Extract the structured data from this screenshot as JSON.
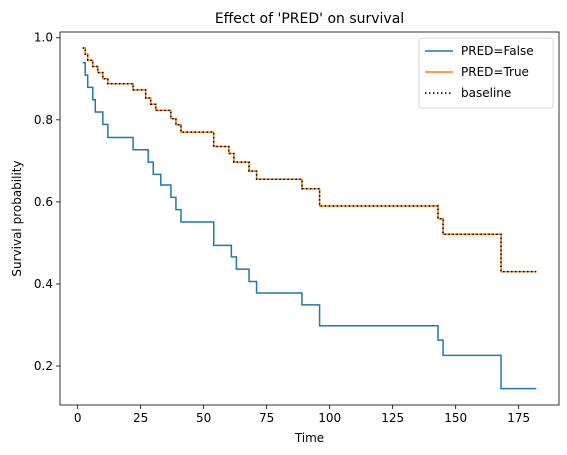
{
  "chart_data": {
    "type": "line",
    "title": "Effect of 'PRED' on survival",
    "xlabel": "Time",
    "ylabel": "Survival probability",
    "xlim": [
      -7,
      191
    ],
    "ylim": [
      0.105,
      1.014
    ],
    "xticks": [
      0,
      25,
      50,
      75,
      100,
      125,
      150,
      175
    ],
    "yticks": [
      0.2,
      0.4,
      0.6,
      0.8,
      1.0
    ],
    "ytick_labels": [
      "0.2",
      "0.4",
      "0.6",
      "0.8",
      "1.0"
    ],
    "legend_position": "top-right",
    "grid": false,
    "series": [
      {
        "name": "PRED=False",
        "color": "#1f77b4",
        "style": "solid",
        "x": [
          2,
          3,
          4,
          5,
          6,
          7,
          10,
          12,
          22,
          27,
          28,
          30,
          33,
          37,
          39,
          41,
          54,
          61,
          63,
          65,
          68,
          71,
          89,
          96,
          143,
          145,
          147,
          168,
          182
        ],
        "y": [
          0.939,
          0.909,
          0.879,
          0.879,
          0.849,
          0.819,
          0.789,
          0.757,
          0.727,
          0.727,
          0.697,
          0.667,
          0.641,
          0.611,
          0.581,
          0.551,
          0.494,
          0.466,
          0.436,
          0.436,
          0.406,
          0.378,
          0.349,
          0.298,
          0.263,
          0.226,
          0.226,
          0.145,
          0.145
        ]
      },
      {
        "name": "PRED=True",
        "color": "#ff7f0e",
        "style": "solid",
        "x": [
          2,
          3,
          4,
          6,
          8,
          10,
          12,
          22,
          27,
          29,
          31,
          33,
          37,
          39,
          41,
          54,
          60,
          62,
          65,
          68,
          71,
          89,
          96,
          143,
          145,
          146,
          168,
          182
        ],
        "y": [
          0.975,
          0.96,
          0.945,
          0.93,
          0.915,
          0.9,
          0.888,
          0.873,
          0.853,
          0.838,
          0.823,
          0.823,
          0.803,
          0.788,
          0.77,
          0.735,
          0.718,
          0.697,
          0.697,
          0.675,
          0.655,
          0.632,
          0.59,
          0.559,
          0.521,
          0.521,
          0.43,
          0.43
        ]
      },
      {
        "name": "baseline",
        "color": "#000000",
        "style": "dotted",
        "x": [
          2,
          3,
          4,
          6,
          8,
          10,
          12,
          22,
          27,
          29,
          31,
          33,
          37,
          39,
          41,
          54,
          60,
          62,
          65,
          68,
          71,
          89,
          96,
          143,
          145,
          146,
          168,
          182
        ],
        "y": [
          0.975,
          0.96,
          0.945,
          0.93,
          0.915,
          0.9,
          0.888,
          0.873,
          0.853,
          0.838,
          0.823,
          0.823,
          0.803,
          0.788,
          0.77,
          0.735,
          0.718,
          0.697,
          0.697,
          0.675,
          0.655,
          0.632,
          0.59,
          0.559,
          0.521,
          0.521,
          0.43,
          0.43
        ]
      }
    ]
  }
}
